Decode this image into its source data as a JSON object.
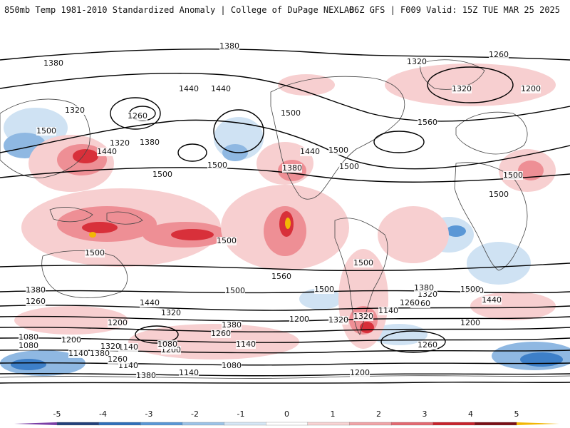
{
  "header": {
    "title_left": "850mb Temp 1981-2010 Standardized Anomaly | College of DuPage NEXLAB",
    "title_right": "06Z GFS | F009 Valid: 15Z TUE MAR 25 2025"
  },
  "map": {
    "contour_labels": [
      "1380",
      "1380",
      "1260",
      "1320",
      "1440",
      "1440",
      "1500",
      "1380",
      "1320",
      "1200",
      "1320",
      "1440",
      "1560",
      "1500",
      "1260",
      "1320",
      "1500",
      "1440",
      "1380",
      "1500",
      "1500",
      "1500",
      "1500",
      "1500",
      "1500",
      "1500",
      "1500",
      "1500",
      "1560",
      "1500",
      "1500",
      "1380",
      "1260",
      "1440",
      "1320",
      "1380",
      "1200",
      "1320",
      "1080",
      "1260",
      "1140",
      "1200",
      "1140",
      "1080",
      "1320",
      "1380",
      "1260",
      "1140",
      "1200",
      "1080",
      "1140",
      "1080",
      "1380",
      "1200",
      "1140",
      "1260",
      "1320",
      "1200",
      "1260",
      "1320",
      "1380",
      "1440",
      "1500",
      "1260",
      "1200",
      "1140"
    ],
    "colors": {
      "ocean_background": "#ffffff",
      "warm_light": "#f7cfd0",
      "warm_medium": "#ee8f95",
      "warm_strong": "#d8303a",
      "warm_extreme": "#8c1a22",
      "cool_light": "#cfe2f3",
      "cool_medium": "#8fb8e2",
      "cool_strong": "#3d7fc8",
      "contour": "#000000",
      "coastline": "#444444"
    }
  },
  "colorbar": {
    "ticks": [
      "-5",
      "-4",
      "-3",
      "-2",
      "-1",
      "0",
      "1",
      "2",
      "3",
      "4",
      "5"
    ],
    "colors": [
      "#7b3fa7",
      "#23407a",
      "#2f6fba",
      "#5a97d6",
      "#9cc3e8",
      "#d6e7f6",
      "#ffffff",
      "#f9d3d3",
      "#f1a4a7",
      "#e46a72",
      "#c8232c",
      "#7a0f16",
      "#f2b705"
    ]
  }
}
